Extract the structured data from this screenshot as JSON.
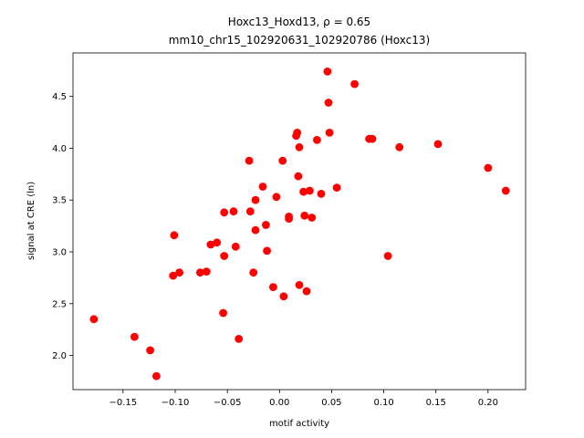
{
  "chart_data": {
    "type": "scatter",
    "title_line1": "Hoxc13_Hoxd13, ρ = 0.65",
    "title_line2": "mm10_chr15_102920631_102920786 (Hoxc13)",
    "xlabel": "motif activity",
    "ylabel": "signal at CRE (ln)",
    "xlim": [
      -0.198,
      0.236
    ],
    "ylim": [
      1.67,
      4.92
    ],
    "xticks": [
      -0.15,
      -0.1,
      -0.05,
      0.0,
      0.05,
      0.1,
      0.15,
      0.2
    ],
    "xtick_labels": [
      "−0.15",
      "−0.10",
      "−0.05",
      "0.00",
      "0.05",
      "0.10",
      "0.15",
      "0.20"
    ],
    "yticks": [
      2.0,
      2.5,
      3.0,
      3.5,
      4.0,
      4.5
    ],
    "ytick_labels": [
      "2.0",
      "2.5",
      "3.0",
      "3.5",
      "4.0",
      "4.5"
    ],
    "marker_color": "#ff0000",
    "points": [
      {
        "x": -0.178,
        "y": 2.35
      },
      {
        "x": -0.139,
        "y": 2.18
      },
      {
        "x": -0.124,
        "y": 2.05
      },
      {
        "x": -0.118,
        "y": 1.8
      },
      {
        "x": -0.101,
        "y": 3.16
      },
      {
        "x": -0.102,
        "y": 2.77
      },
      {
        "x": -0.096,
        "y": 2.8
      },
      {
        "x": -0.076,
        "y": 2.8
      },
      {
        "x": -0.07,
        "y": 2.81
      },
      {
        "x": -0.066,
        "y": 3.07
      },
      {
        "x": -0.06,
        "y": 3.09
      },
      {
        "x": -0.054,
        "y": 2.41
      },
      {
        "x": -0.053,
        "y": 2.96
      },
      {
        "x": -0.053,
        "y": 3.38
      },
      {
        "x": -0.044,
        "y": 3.39
      },
      {
        "x": -0.042,
        "y": 3.05
      },
      {
        "x": -0.039,
        "y": 2.16
      },
      {
        "x": -0.029,
        "y": 3.88
      },
      {
        "x": -0.028,
        "y": 3.39
      },
      {
        "x": -0.025,
        "y": 2.8
      },
      {
        "x": -0.023,
        "y": 3.21
      },
      {
        "x": -0.023,
        "y": 3.5
      },
      {
        "x": -0.016,
        "y": 3.63
      },
      {
        "x": -0.013,
        "y": 3.26
      },
      {
        "x": -0.012,
        "y": 3.01
      },
      {
        "x": -0.006,
        "y": 2.66
      },
      {
        "x": -0.003,
        "y": 3.53
      },
      {
        "x": 0.003,
        "y": 3.88
      },
      {
        "x": 0.004,
        "y": 2.57
      },
      {
        "x": 0.009,
        "y": 3.34
      },
      {
        "x": 0.009,
        "y": 3.32
      },
      {
        "x": 0.016,
        "y": 4.12
      },
      {
        "x": 0.017,
        "y": 4.15
      },
      {
        "x": 0.018,
        "y": 3.73
      },
      {
        "x": 0.019,
        "y": 4.01
      },
      {
        "x": 0.019,
        "y": 2.68
      },
      {
        "x": 0.023,
        "y": 3.58
      },
      {
        "x": 0.024,
        "y": 3.35
      },
      {
        "x": 0.026,
        "y": 2.62
      },
      {
        "x": 0.029,
        "y": 3.59
      },
      {
        "x": 0.031,
        "y": 3.33
      },
      {
        "x": 0.036,
        "y": 4.08
      },
      {
        "x": 0.04,
        "y": 3.56
      },
      {
        "x": 0.046,
        "y": 4.74
      },
      {
        "x": 0.047,
        "y": 4.44
      },
      {
        "x": 0.048,
        "y": 4.15
      },
      {
        "x": 0.055,
        "y": 3.62
      },
      {
        "x": 0.072,
        "y": 4.62
      },
      {
        "x": 0.086,
        "y": 4.09
      },
      {
        "x": 0.089,
        "y": 4.09
      },
      {
        "x": 0.104,
        "y": 2.96
      },
      {
        "x": 0.115,
        "y": 4.01
      },
      {
        "x": 0.152,
        "y": 4.04
      },
      {
        "x": 0.2,
        "y": 3.81
      },
      {
        "x": 0.217,
        "y": 3.59
      }
    ]
  }
}
